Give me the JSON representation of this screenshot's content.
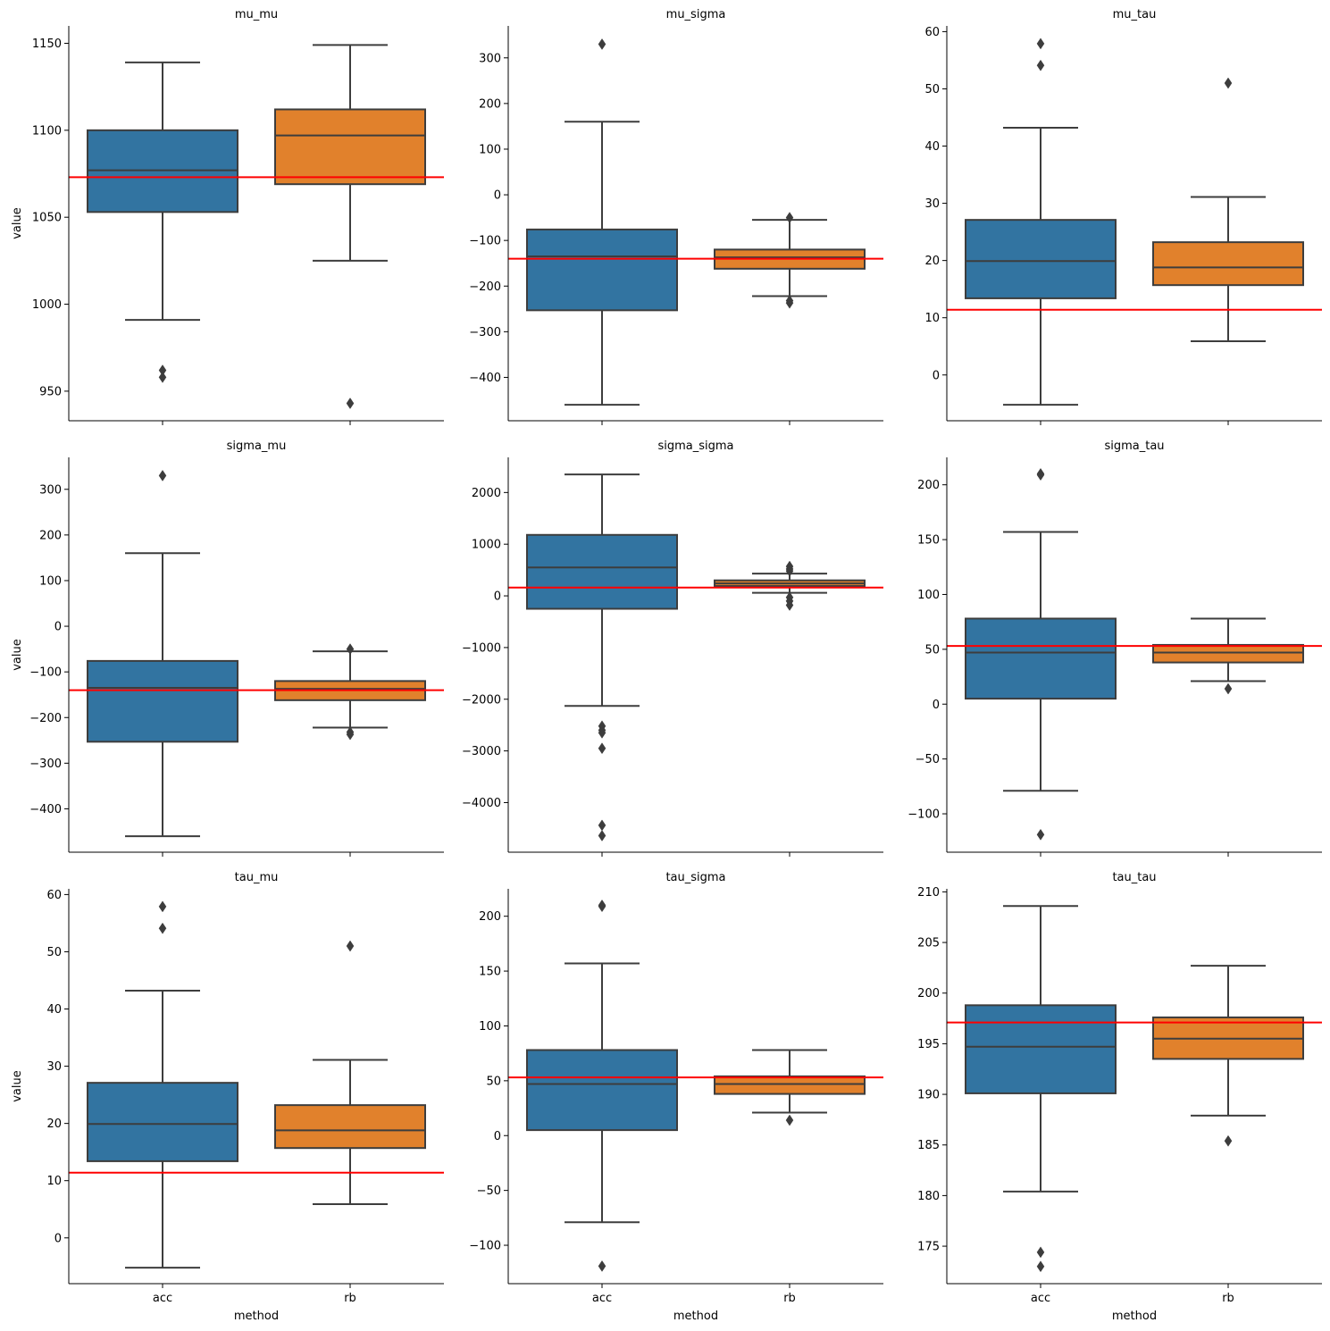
{
  "figure": {
    "xlabel": "method",
    "ylabel": "value"
  },
  "colors": {
    "acc": "#3274a1",
    "rb": "#e1812c",
    "reference_line": "#ff0000",
    "box_edge": "#3d3d3d"
  },
  "chart_data": [
    {
      "type": "box",
      "title": "mu_mu",
      "xlabel": "",
      "ylabel": "value",
      "categories": [
        "acc",
        "rb"
      ],
      "ylim": [
        933,
        1160
      ],
      "yticks": [
        950,
        1000,
        1050,
        1100,
        1150
      ],
      "reference_line": 1073,
      "boxes": [
        {
          "category": "acc",
          "whisker_low": 991,
          "q1": 1053,
          "median": 1077,
          "q3": 1100,
          "whisker_high": 1139,
          "outliers": [
            962,
            958
          ]
        },
        {
          "category": "rb",
          "whisker_low": 1025,
          "q1": 1069,
          "median": 1097,
          "q3": 1112,
          "whisker_high": 1149,
          "outliers": [
            943
          ]
        }
      ]
    },
    {
      "type": "box",
      "title": "mu_sigma",
      "xlabel": "",
      "ylabel": "",
      "categories": [
        "acc",
        "rb"
      ],
      "ylim": [
        -495,
        370
      ],
      "yticks": [
        -400,
        -300,
        -200,
        -100,
        0,
        100,
        200,
        300
      ],
      "reference_line": -140,
      "boxes": [
        {
          "category": "acc",
          "whisker_low": -460,
          "q1": -253,
          "median": -135,
          "q3": -76,
          "whisker_high": 160,
          "outliers": [
            330
          ]
        },
        {
          "category": "rb",
          "whisker_low": -222,
          "q1": -162,
          "median": -137,
          "q3": -120,
          "whisker_high": -55,
          "outliers": [
            -50,
            -232,
            -237
          ]
        }
      ]
    },
    {
      "type": "box",
      "title": "mu_tau",
      "xlabel": "",
      "ylabel": "",
      "categories": [
        "acc",
        "rb"
      ],
      "ylim": [
        -8,
        61
      ],
      "yticks": [
        0,
        10,
        20,
        30,
        40,
        50,
        60
      ],
      "reference_line": 11.4,
      "boxes": [
        {
          "category": "acc",
          "whisker_low": -5.2,
          "q1": 13.4,
          "median": 19.9,
          "q3": 27.1,
          "whisker_high": 43.2,
          "outliers": [
            57.9,
            54.1
          ]
        },
        {
          "category": "rb",
          "whisker_low": 5.9,
          "q1": 15.7,
          "median": 18.8,
          "q3": 23.2,
          "whisker_high": 31.1,
          "outliers": [
            51
          ]
        }
      ]
    },
    {
      "type": "box",
      "title": "sigma_mu",
      "xlabel": "",
      "ylabel": "value",
      "categories": [
        "acc",
        "rb"
      ],
      "ylim": [
        -495,
        370
      ],
      "yticks": [
        -400,
        -300,
        -200,
        -100,
        0,
        100,
        200,
        300
      ],
      "reference_line": -140,
      "boxes": [
        {
          "category": "acc",
          "whisker_low": -460,
          "q1": -253,
          "median": -135,
          "q3": -76,
          "whisker_high": 160,
          "outliers": [
            330
          ]
        },
        {
          "category": "rb",
          "whisker_low": -222,
          "q1": -162,
          "median": -137,
          "q3": -120,
          "whisker_high": -55,
          "outliers": [
            -50,
            -232,
            -237
          ]
        }
      ]
    },
    {
      "type": "box",
      "title": "sigma_sigma",
      "xlabel": "",
      "ylabel": "",
      "categories": [
        "acc",
        "rb"
      ],
      "ylim": [
        -4960,
        2680
      ],
      "yticks": [
        -4000,
        -3000,
        -2000,
        -1000,
        0,
        1000,
        2000
      ],
      "reference_line": 160,
      "boxes": [
        {
          "category": "acc",
          "whisker_low": -2130,
          "q1": -250,
          "median": 550,
          "q3": 1180,
          "whisker_high": 2350,
          "outliers": [
            -2520,
            -2600,
            -2650,
            -2950,
            -4440,
            -4640
          ]
        },
        {
          "category": "rb",
          "whisker_low": 60,
          "q1": 190,
          "median": 240,
          "q3": 300,
          "whisker_high": 430,
          "outliers": [
            570,
            520,
            480,
            -30,
            -100,
            -180
          ]
        }
      ]
    },
    {
      "type": "box",
      "title": "sigma_tau",
      "xlabel": "",
      "ylabel": "",
      "categories": [
        "acc",
        "rb"
      ],
      "ylim": [
        -135,
        225
      ],
      "yticks": [
        -100,
        -50,
        0,
        50,
        100,
        150,
        200
      ],
      "reference_line": 53,
      "boxes": [
        {
          "category": "acc",
          "whisker_low": -79,
          "q1": 5,
          "median": 47,
          "q3": 78,
          "whisker_high": 157,
          "outliers": [
            210,
            209,
            -119
          ]
        },
        {
          "category": "rb",
          "whisker_low": 21,
          "q1": 38,
          "median": 47,
          "q3": 54,
          "whisker_high": 78,
          "outliers": [
            14
          ]
        }
      ]
    },
    {
      "type": "box",
      "title": "tau_mu",
      "xlabel": "method",
      "ylabel": "value",
      "categories": [
        "acc",
        "rb"
      ],
      "ylim": [
        -8,
        61
      ],
      "yticks": [
        0,
        10,
        20,
        30,
        40,
        50,
        60
      ],
      "reference_line": 11.4,
      "boxes": [
        {
          "category": "acc",
          "whisker_low": -5.2,
          "q1": 13.4,
          "median": 19.9,
          "q3": 27.1,
          "whisker_high": 43.2,
          "outliers": [
            57.9,
            54.1
          ]
        },
        {
          "category": "rb",
          "whisker_low": 5.9,
          "q1": 15.7,
          "median": 18.8,
          "q3": 23.2,
          "whisker_high": 31.1,
          "outliers": [
            51
          ]
        }
      ]
    },
    {
      "type": "box",
      "title": "tau_sigma",
      "xlabel": "method",
      "ylabel": "",
      "categories": [
        "acc",
        "rb"
      ],
      "ylim": [
        -135,
        225
      ],
      "yticks": [
        -100,
        -50,
        0,
        50,
        100,
        150,
        200
      ],
      "reference_line": 53,
      "boxes": [
        {
          "category": "acc",
          "whisker_low": -79,
          "q1": 5,
          "median": 47,
          "q3": 78,
          "whisker_high": 157,
          "outliers": [
            210,
            209,
            -119
          ]
        },
        {
          "category": "rb",
          "whisker_low": 21,
          "q1": 38,
          "median": 47,
          "q3": 54,
          "whisker_high": 78,
          "outliers": [
            14
          ]
        }
      ]
    },
    {
      "type": "box",
      "title": "tau_tau",
      "xlabel": "method",
      "ylabel": "",
      "categories": [
        "acc",
        "rb"
      ],
      "ylim": [
        171.3,
        210.3
      ],
      "yticks": [
        175,
        180,
        185,
        190,
        195,
        200,
        205,
        210
      ],
      "reference_line": 197.1,
      "boxes": [
        {
          "category": "acc",
          "whisker_low": 180.4,
          "q1": 190.1,
          "median": 194.7,
          "q3": 198.8,
          "whisker_high": 208.6,
          "outliers": [
            174.4,
            173
          ]
        },
        {
          "category": "rb",
          "whisker_low": 187.9,
          "q1": 193.5,
          "median": 195.5,
          "q3": 197.6,
          "whisker_high": 202.7,
          "outliers": [
            185.4
          ]
        }
      ]
    }
  ]
}
